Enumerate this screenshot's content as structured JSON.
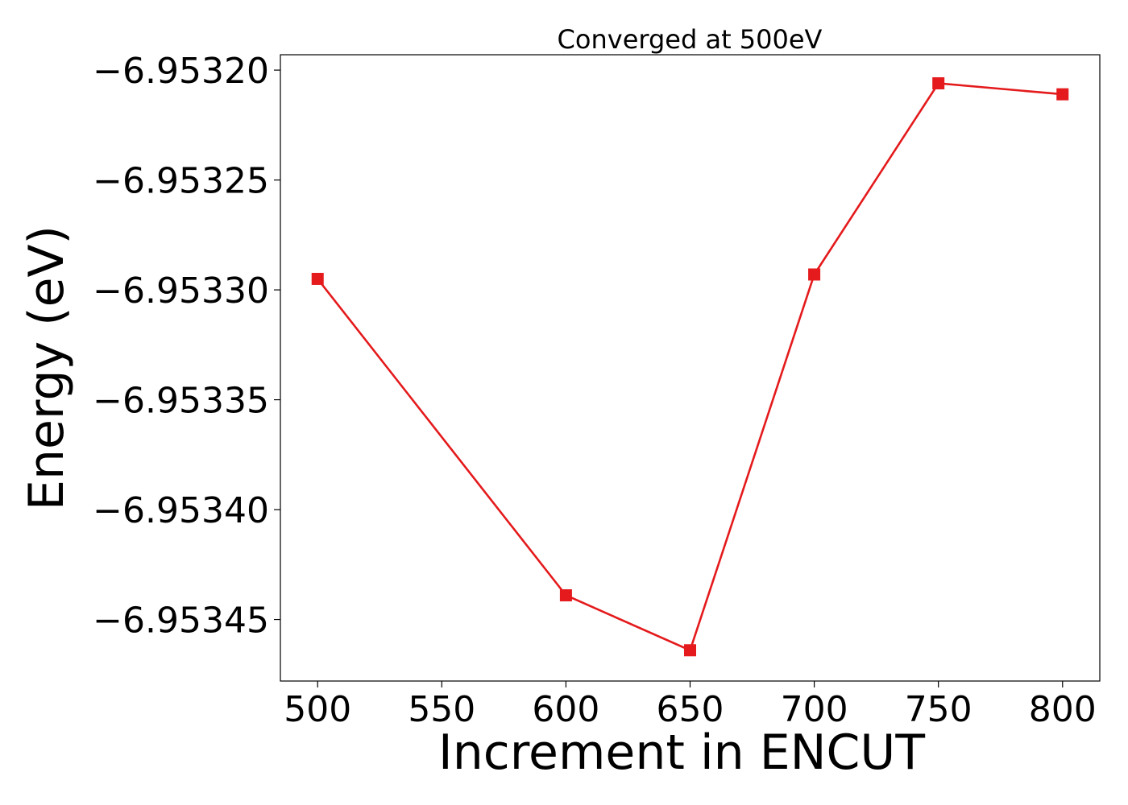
{
  "chart_data": {
    "type": "line",
    "title": "Converged at 500eV",
    "xlabel": "Increment in ENCUT",
    "ylabel": "Energy (eV)",
    "x": [
      500,
      600,
      650,
      700,
      750,
      800
    ],
    "series": [
      {
        "values": [
          -6.953295,
          -6.953439,
          -6.953464,
          -6.953293,
          -6.953206,
          -6.953211
        ],
        "color": "#e41a1c",
        "marker": "square"
      }
    ],
    "xticks": [
      500,
      550,
      600,
      650,
      700,
      750,
      800
    ],
    "xtick_labels": [
      "500",
      "550",
      "600",
      "650",
      "700",
      "750",
      "800"
    ],
    "yticks": [
      -6.9532,
      -6.95325,
      -6.9533,
      -6.95335,
      -6.9534,
      -6.95345
    ],
    "ytick_labels": [
      "−6.95320",
      "−6.95325",
      "−6.95330",
      "−6.95335",
      "−6.95340",
      "−6.95345"
    ],
    "xlim": [
      485,
      815
    ],
    "ylim": [
      -6.953478,
      -6.953193
    ],
    "grid": false,
    "legend": false
  }
}
